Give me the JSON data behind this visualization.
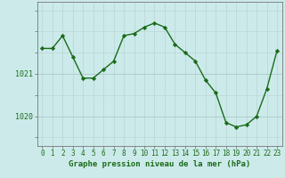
{
  "x": [
    0,
    1,
    2,
    3,
    4,
    5,
    6,
    7,
    8,
    9,
    10,
    11,
    12,
    13,
    14,
    15,
    16,
    17,
    18,
    19,
    20,
    21,
    22,
    23
  ],
  "y": [
    1021.6,
    1021.6,
    1021.9,
    1021.4,
    1020.9,
    1020.9,
    1021.1,
    1021.3,
    1021.9,
    1021.95,
    1022.1,
    1022.2,
    1022.1,
    1021.7,
    1021.5,
    1021.3,
    1020.85,
    1020.55,
    1019.85,
    1019.75,
    1019.8,
    1020.0,
    1020.65,
    1021.55
  ],
  "line_color": "#1a6b1a",
  "marker": "D",
  "markersize": 2.2,
  "linewidth": 1.0,
  "xlabel": "Graphe pression niveau de la mer (hPa)",
  "xlabel_fontsize": 6.5,
  "xlabel_bold": true,
  "yticks": [
    1020,
    1021
  ],
  "ylim": [
    1019.3,
    1022.7
  ],
  "xlim": [
    -0.5,
    23.5
  ],
  "xtick_labels": [
    "0",
    "1",
    "2",
    "3",
    "4",
    "5",
    "6",
    "7",
    "8",
    "9",
    "10",
    "11",
    "12",
    "13",
    "14",
    "15",
    "16",
    "17",
    "18",
    "19",
    "20",
    "21",
    "22",
    "23"
  ],
  "bg_color": "#cceaea",
  "grid_color_h": "#adc8c8",
  "grid_color_v": "#b8d4d4",
  "tick_fontsize": 5.5,
  "ytick_fontsize": 6.0
}
